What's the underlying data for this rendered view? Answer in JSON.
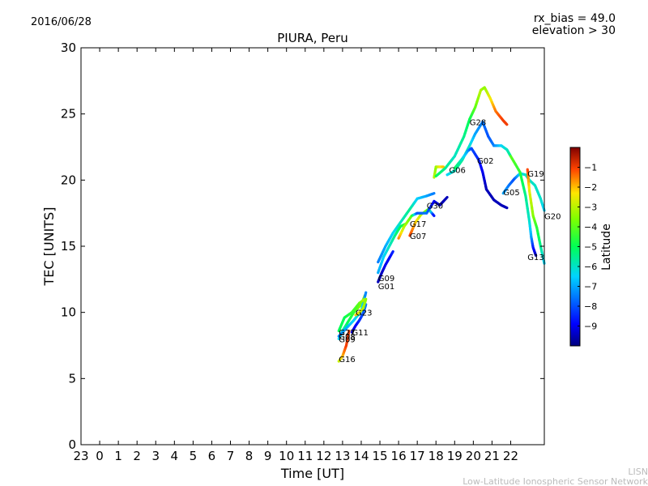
{
  "header": {
    "date": "2016/06/28",
    "rx_bias": "rx_bias = 49.0",
    "elevation": "elevation > 30"
  },
  "footer": {
    "org_short": "LISN",
    "org_long": "Low-Latitude Ionospheric Sensor Network"
  },
  "chart_data": {
    "type": "scatter",
    "title": "PIURA, Peru",
    "xlabel": "Time [UT]",
    "ylabel": "TEC [UNITS]",
    "xlim": [
      -1,
      23.8
    ],
    "ylim": [
      0,
      30
    ],
    "x_ticks": [
      {
        "v": -1,
        "label": "23"
      },
      {
        "v": 0,
        "label": "0"
      },
      {
        "v": 1,
        "label": "1"
      },
      {
        "v": 2,
        "label": "2"
      },
      {
        "v": 3,
        "label": "3"
      },
      {
        "v": 4,
        "label": "4"
      },
      {
        "v": 5,
        "label": "5"
      },
      {
        "v": 6,
        "label": "6"
      },
      {
        "v": 7,
        "label": "7"
      },
      {
        "v": 8,
        "label": "8"
      },
      {
        "v": 9,
        "label": "9"
      },
      {
        "v": 10,
        "label": "10"
      },
      {
        "v": 11,
        "label": "11"
      },
      {
        "v": 12,
        "label": "12"
      },
      {
        "v": 13,
        "label": "13"
      },
      {
        "v": 14,
        "label": "14"
      },
      {
        "v": 15,
        "label": "15"
      },
      {
        "v": 16,
        "label": "16"
      },
      {
        "v": 17,
        "label": "17"
      },
      {
        "v": 18,
        "label": "18"
      },
      {
        "v": 19,
        "label": "19"
      },
      {
        "v": 20,
        "label": "20"
      },
      {
        "v": 21,
        "label": "21"
      },
      {
        "v": 22,
        "label": "22"
      }
    ],
    "y_ticks": [
      {
        "v": 0,
        "label": "0"
      },
      {
        "v": 5,
        "label": "5"
      },
      {
        "v": 10,
        "label": "10"
      },
      {
        "v": 15,
        "label": "15"
      },
      {
        "v": 20,
        "label": "20"
      },
      {
        "v": 25,
        "label": "25"
      },
      {
        "v": 30,
        "label": "30"
      }
    ],
    "colorbar": {
      "label": "Latitude",
      "min": -10,
      "max": 0,
      "ticks": [
        {
          "v": -1,
          "label": "−1"
        },
        {
          "v": -2,
          "label": "−2"
        },
        {
          "v": -3,
          "label": "−3"
        },
        {
          "v": -4,
          "label": "−4"
        },
        {
          "v": -5,
          "label": "−5"
        },
        {
          "v": -6,
          "label": "−6"
        },
        {
          "v": -7,
          "label": "−7"
        },
        {
          "v": -8,
          "label": "−8"
        },
        {
          "v": -9,
          "label": "−9"
        }
      ]
    },
    "series": [
      {
        "label": "G16",
        "label_at": [
          12.8,
          6.5
        ],
        "points": [
          [
            12.8,
            6.3,
            -3.0
          ],
          [
            13.0,
            6.7,
            -2.0
          ],
          [
            13.2,
            7.5,
            -1.0
          ],
          [
            13.35,
            8.6,
            -1.0
          ]
        ]
      },
      {
        "label": "G27",
        "label_at": [
          12.8,
          8.5
        ],
        "points": [
          [
            12.8,
            8.0,
            -6.5
          ],
          [
            13.0,
            8.6,
            -6.0
          ],
          [
            13.3,
            9.3,
            -5.0
          ],
          [
            13.6,
            10.0,
            -4.5
          ],
          [
            14.0,
            10.6,
            -3.5
          ],
          [
            14.2,
            11.3,
            -3.0
          ]
        ]
      },
      {
        "label": "G08",
        "label_at": [
          12.8,
          8.2
        ],
        "points": [
          [
            12.8,
            8.2,
            -7.5
          ],
          [
            13.2,
            8.8,
            -7.0
          ],
          [
            13.6,
            9.4,
            -6.5
          ],
          [
            14.0,
            10.1,
            -6.0
          ],
          [
            14.25,
            11.5,
            -7.5
          ]
        ]
      },
      {
        "label": "G09",
        "label_at": [
          12.8,
          8.0
        ],
        "points": [
          [
            12.8,
            8.6,
            -5.0
          ],
          [
            13.1,
            9.6,
            -5.0
          ],
          [
            13.5,
            10.0,
            -4.5
          ],
          [
            13.9,
            10.7,
            -4.0
          ],
          [
            14.2,
            11.0,
            -3.0
          ]
        ]
      },
      {
        "label": "G11",
        "label_at": [
          13.5,
          8.5
        ],
        "points": [
          [
            13.5,
            8.5,
            -9.5
          ],
          [
            13.7,
            9.0,
            -9.0
          ],
          [
            13.9,
            9.4,
            -8.5
          ],
          [
            14.1,
            9.9,
            -8.0
          ],
          [
            14.25,
            10.6,
            -7.5
          ]
        ]
      },
      {
        "label": "G23",
        "label_at": [
          13.7,
          10.0
        ],
        "points": [
          [
            13.7,
            9.8,
            -2.0
          ],
          [
            13.9,
            10.0,
            -2.5
          ],
          [
            14.1,
            10.3,
            -3.0
          ],
          [
            14.25,
            11.0,
            -3.5
          ]
        ]
      },
      {
        "label": "G09",
        "label_at": [
          14.9,
          12.6
        ],
        "points": [
          [
            14.9,
            13.0,
            -7.0
          ],
          [
            15.2,
            14.2,
            -6.5
          ],
          [
            15.5,
            15.0,
            -6.0
          ],
          [
            15.8,
            15.8,
            -5.5
          ],
          [
            16.1,
            16.5,
            -5.0
          ],
          [
            16.4,
            16.7,
            -4.5
          ]
        ]
      },
      {
        "label": "G01",
        "label_at": [
          14.9,
          12.0
        ],
        "points": [
          [
            14.9,
            12.3,
            -9.5
          ],
          [
            15.1,
            13.0,
            -9.5
          ],
          [
            15.3,
            13.6,
            -9.0
          ],
          [
            15.5,
            14.1,
            -9.0
          ],
          [
            15.7,
            14.6,
            -8.5
          ]
        ]
      },
      {
        "label": "G17",
        "label_at": [
          16.6,
          16.7
        ],
        "points": [
          [
            14.9,
            13.8,
            -7.5
          ],
          [
            15.3,
            15.0,
            -7.0
          ],
          [
            15.7,
            16.0,
            -6.5
          ],
          [
            16.1,
            16.8,
            -6.0
          ],
          [
            16.6,
            17.8,
            -5.5
          ],
          [
            17.0,
            18.6,
            -6.5
          ],
          [
            17.5,
            18.8,
            -7.0
          ],
          [
            17.9,
            19.0,
            -7.5
          ]
        ]
      },
      {
        "label": "G07",
        "label_at": [
          16.6,
          15.8
        ],
        "points": [
          [
            16.6,
            15.8,
            -1.0
          ],
          [
            16.9,
            16.8,
            -2.0
          ],
          [
            17.2,
            17.4,
            -3.0
          ],
          [
            17.6,
            17.8,
            -4.0
          ],
          [
            17.9,
            17.3,
            -9.0
          ]
        ]
      },
      {
        "label": "G30",
        "label_at": [
          17.5,
          18.1
        ],
        "points": [
          [
            16.0,
            15.6,
            -1.5
          ],
          [
            16.3,
            16.5,
            -3.0
          ],
          [
            16.7,
            17.3,
            -4.0
          ],
          [
            17.0,
            17.5,
            -8.0
          ],
          [
            17.5,
            17.5,
            -7.5
          ],
          [
            17.9,
            18.4,
            -9.0
          ],
          [
            18.2,
            18.1,
            -9.5
          ],
          [
            18.6,
            18.7,
            -9.5
          ]
        ]
      },
      {
        "label": "G06",
        "label_at": [
          18.7,
          20.8
        ],
        "points": [
          [
            17.9,
            20.2,
            -3.0
          ],
          [
            18.0,
            21.0,
            -3.5
          ],
          [
            18.2,
            21.0,
            -2.5
          ],
          [
            18.4,
            21.0,
            -2.0
          ]
        ]
      },
      {
        "label": "G28",
        "label_at": [
          19.8,
          24.4
        ],
        "points": [
          [
            18.0,
            20.3,
            -5.0
          ],
          [
            18.5,
            20.9,
            -5.5
          ],
          [
            19.0,
            21.8,
            -6.0
          ],
          [
            19.5,
            23.3,
            -5.5
          ],
          [
            19.8,
            24.6,
            -5.0
          ],
          [
            20.1,
            25.5,
            -4.0
          ],
          [
            20.4,
            26.8,
            -3.0
          ],
          [
            20.6,
            27.0,
            -3.5
          ],
          [
            20.9,
            26.2,
            -2.5
          ],
          [
            21.2,
            25.2,
            -1.5
          ],
          [
            21.6,
            24.5,
            -1.0
          ],
          [
            21.8,
            24.2,
            -1.0
          ]
        ]
      },
      {
        "label": "G02",
        "label_at": [
          20.2,
          21.5
        ],
        "points": [
          [
            18.6,
            20.4,
            -6.5
          ],
          [
            19.0,
            20.7,
            -6.0
          ],
          [
            19.4,
            21.5,
            -5.5
          ],
          [
            19.8,
            22.6,
            -6.0
          ],
          [
            20.1,
            23.5,
            -7.0
          ],
          [
            20.5,
            24.4,
            -7.5
          ],
          [
            20.8,
            23.3,
            -8.0
          ],
          [
            21.1,
            22.6,
            -7.5
          ],
          [
            21.5,
            22.6,
            -6.5
          ],
          [
            21.8,
            22.3,
            -6.0
          ],
          [
            22.0,
            21.8,
            -5.5
          ]
        ]
      },
      {
        "label": "G05",
        "label_at": [
          21.6,
          19.1
        ],
        "points": [
          [
            19.0,
            20.9,
            -5.0
          ],
          [
            19.4,
            21.6,
            -6.0
          ],
          [
            19.7,
            22.2,
            -7.0
          ],
          [
            19.9,
            22.4,
            -8.0
          ],
          [
            20.3,
            21.5,
            -8.5
          ],
          [
            20.5,
            20.6,
            -9.0
          ],
          [
            20.7,
            19.3,
            -9.5
          ],
          [
            21.1,
            18.5,
            -9.5
          ],
          [
            21.5,
            18.1,
            -9.5
          ],
          [
            21.8,
            17.9,
            -9.5
          ]
        ]
      },
      {
        "label": "G19",
        "label_at": [
          22.9,
          20.5
        ],
        "points": [
          [
            21.6,
            19.0,
            -7.0
          ],
          [
            21.9,
            19.6,
            -7.5
          ],
          [
            22.2,
            20.1,
            -8.0
          ],
          [
            22.5,
            20.5,
            -6.5
          ],
          [
            22.8,
            20.4,
            -6.0
          ],
          [
            23.0,
            20.0,
            -6.0
          ],
          [
            23.3,
            19.6,
            -6.0
          ],
          [
            23.6,
            18.6,
            -6.0
          ],
          [
            23.8,
            17.7,
            -6.5
          ]
        ]
      },
      {
        "label": "G13",
        "label_at": [
          22.9,
          14.2
        ],
        "points": [
          [
            22.9,
            20.8,
            -1.0
          ],
          [
            23.0,
            19.2,
            -2.5
          ],
          [
            23.2,
            17.3,
            -3.5
          ],
          [
            23.4,
            16.4,
            -4.5
          ],
          [
            23.6,
            15.0,
            -5.5
          ],
          [
            23.8,
            13.7,
            -6.5
          ]
        ]
      },
      {
        "label": "G20",
        "label_at": [
          23.8,
          17.3
        ],
        "points": [
          [
            22.0,
            21.8,
            -4.0
          ],
          [
            22.5,
            20.6,
            -4.5
          ],
          [
            22.8,
            18.8,
            -5.5
          ],
          [
            23.0,
            16.9,
            -6.0
          ],
          [
            23.1,
            15.7,
            -7.0
          ],
          [
            23.2,
            14.9,
            -8.5
          ],
          [
            23.35,
            14.3,
            -9.5
          ]
        ]
      }
    ]
  }
}
